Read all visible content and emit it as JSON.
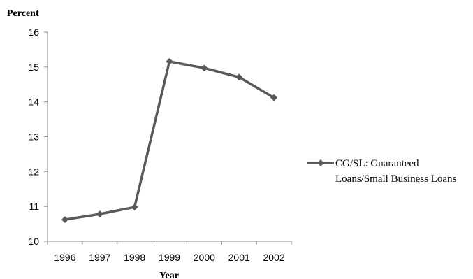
{
  "chart_data": {
    "type": "line",
    "title": "",
    "ylabel": "Percent",
    "xlabel": "Year",
    "x": [
      "1996",
      "1997",
      "1998",
      "1999",
      "2000",
      "2001",
      "2002"
    ],
    "ylim": [
      10,
      16
    ],
    "yticks": [
      "10",
      "11",
      "12",
      "13",
      "14",
      "15",
      "16"
    ],
    "grid": false,
    "legend_position": "right",
    "series": [
      {
        "name": "CG/SL: Guaranteed Loans/Small Business Loans",
        "legend_lines": [
          "CG/SL: Guaranteed",
          "Loans/Small Business Loans"
        ],
        "values": [
          10.62,
          10.78,
          10.98,
          15.16,
          14.97,
          14.71,
          14.12
        ],
        "color": "#595959",
        "marker": "diamond"
      }
    ]
  }
}
